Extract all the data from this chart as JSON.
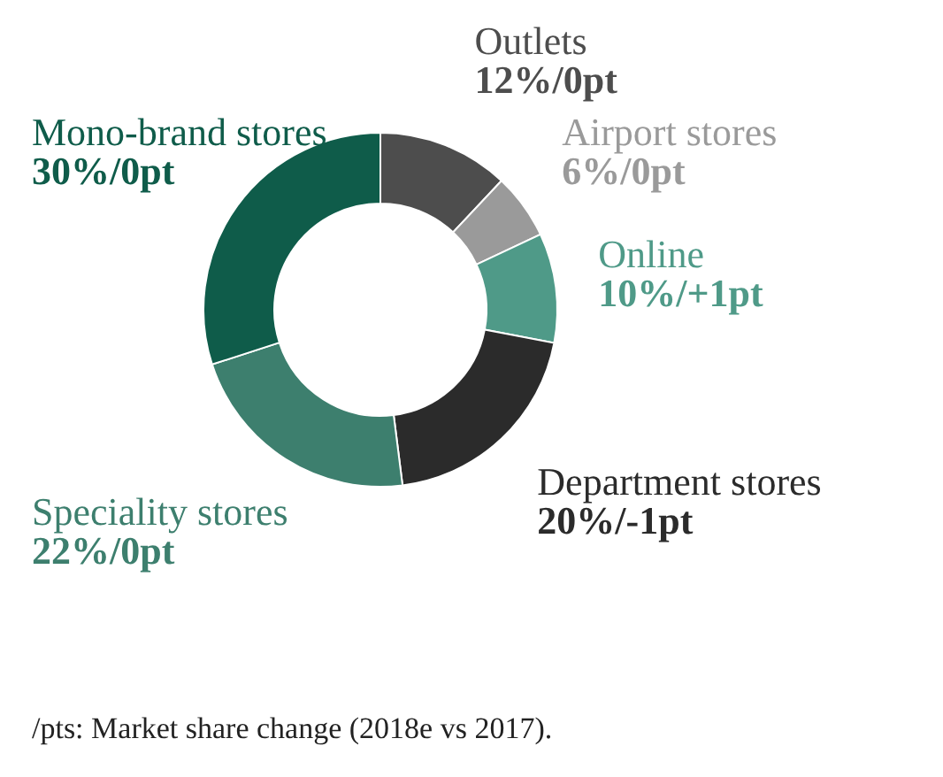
{
  "chart_data": {
    "type": "donut",
    "categories": [
      "Outlets",
      "Airport stores",
      "Online",
      "Department stores",
      "Speciality stores",
      "Mono-brand stores"
    ],
    "values": [
      12,
      6,
      10,
      20,
      22,
      30
    ],
    "value_labels": [
      "12%/0pt",
      "6%/0pt",
      "10%/+1pt",
      "20%/-1pt",
      "22%/0pt",
      "30%/0pt"
    ],
    "colors": [
      "#4d4d4d",
      "#9a9a9a",
      "#4f9a88",
      "#2b2b2b",
      "#3d7f6e",
      "#0f5c4a"
    ],
    "annotations": [
      "/pts: Market share change (2018e vs 2017)."
    ]
  }
}
